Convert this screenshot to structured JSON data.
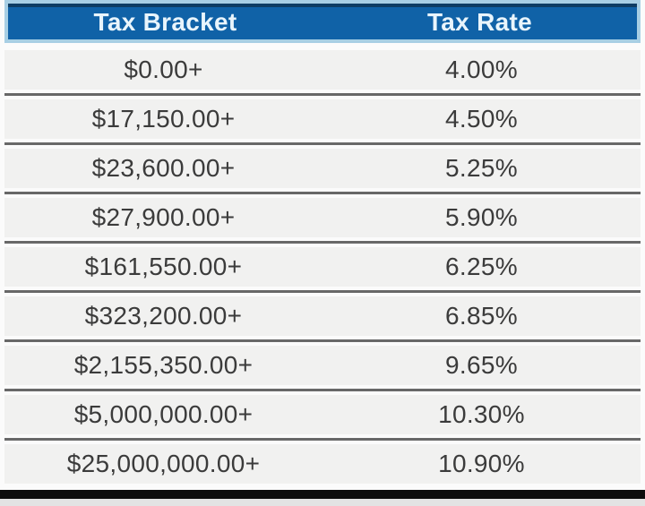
{
  "table": {
    "columns": [
      "Tax Bracket",
      "Tax Rate"
    ],
    "rows": [
      {
        "bracket": "$0.00+",
        "rate": "4.00%"
      },
      {
        "bracket": "$17,150.00+",
        "rate": "4.50%"
      },
      {
        "bracket": "$23,600.00+",
        "rate": "5.25%"
      },
      {
        "bracket": "$27,900.00+",
        "rate": "5.90%"
      },
      {
        "bracket": "$161,550.00+",
        "rate": "6.25%"
      },
      {
        "bracket": "$323,200.00+",
        "rate": "6.85%"
      },
      {
        "bracket": "$2,155,350.00+",
        "rate": "9.65%"
      },
      {
        "bracket": "$5,000,000.00+",
        "rate": "10.30%"
      },
      {
        "bracket": "$25,000,000.00+",
        "rate": "10.90%"
      }
    ]
  },
  "chart_data": {
    "type": "table",
    "title": "",
    "columns": [
      "Tax Bracket",
      "Tax Rate"
    ],
    "rows": [
      [
        "$0.00+",
        "4.00%"
      ],
      [
        "$17,150.00+",
        "4.50%"
      ],
      [
        "$23,600.00+",
        "5.25%"
      ],
      [
        "$27,900.00+",
        "5.90%"
      ],
      [
        "$161,550.00+",
        "6.25%"
      ],
      [
        "$323,200.00+",
        "6.85%"
      ],
      [
        "$2,155,350.00+",
        "9.65%"
      ],
      [
        "$5,000,000.00+",
        "10.30%"
      ],
      [
        "$25,000,000.00+",
        "10.90%"
      ]
    ],
    "bracket_thresholds_usd": [
      0,
      17150,
      23600,
      27900,
      161550,
      323200,
      2155350,
      5000000,
      25000000
    ],
    "rates_percent": [
      4.0,
      4.5,
      5.25,
      5.9,
      6.25,
      6.85,
      9.65,
      10.3,
      10.9
    ]
  },
  "colors": {
    "header_bg": "#1062a7",
    "header_border": "#a8cfe4",
    "header_accent": "#0e3d63",
    "header_text": "#e9f5fc",
    "row_bg": "#f1f1f0",
    "separator_line": "#686868",
    "cell_text": "#3b3b3b",
    "bottom_bar": "#0d0d0d",
    "bottom_strip": "#e3e3e3",
    "page_bg": "#fbfbfb"
  }
}
